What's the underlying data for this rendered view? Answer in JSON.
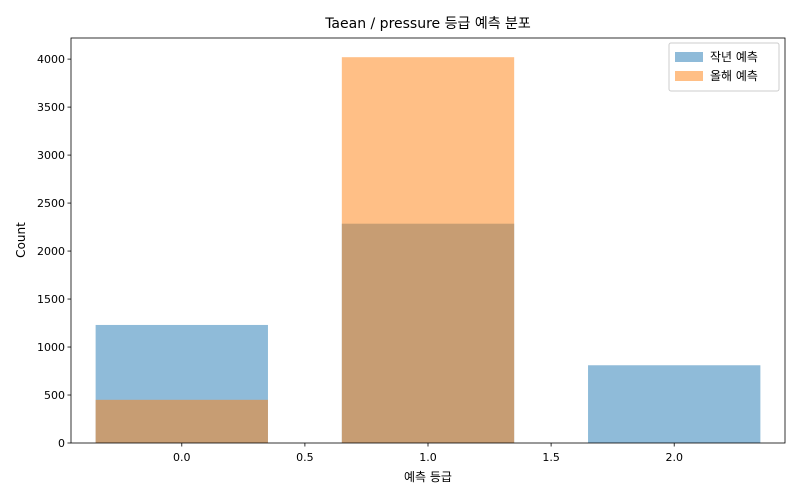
{
  "chart_data": {
    "type": "bar",
    "title": "Taean / pressure 등급 예측 분포",
    "xlabel": "예측 등급",
    "ylabel": "Count",
    "xlim": [
      -0.45,
      2.45
    ],
    "ylim": [
      0,
      4220
    ],
    "x_ticks": [
      0.0,
      0.5,
      1.0,
      1.5,
      2.0
    ],
    "x_tick_labels": [
      "0.0",
      "0.5",
      "1.0",
      "1.5",
      "2.0"
    ],
    "y_ticks": [
      0,
      500,
      1000,
      1500,
      2000,
      2500,
      3000,
      3500,
      4000
    ],
    "y_tick_labels": [
      "0",
      "500",
      "1000",
      "1500",
      "2000",
      "2500",
      "3000",
      "3500",
      "4000"
    ],
    "bar_width": 0.7,
    "grid": false,
    "legend_position": "top-right",
    "series": [
      {
        "name": "작년 예측",
        "color": "#1f77b4",
        "opacity": 0.5,
        "x": [
          0,
          1,
          2
        ],
        "values": [
          1230,
          2285,
          810
        ]
      },
      {
        "name": "올해 예측",
        "color": "#ff7f0e",
        "opacity": 0.5,
        "x": [
          0,
          1
        ],
        "values": [
          450,
          4020
        ]
      }
    ]
  }
}
